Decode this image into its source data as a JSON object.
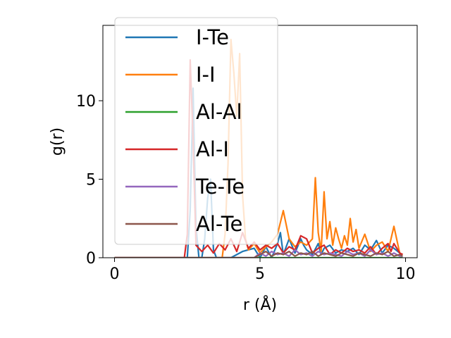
{
  "chart_data": {
    "type": "line",
    "xlabel": "r (Å)",
    "ylabel": "g(r)",
    "xlim": [
      -0.4,
      10.4
    ],
    "ylim": [
      0,
      14.8
    ],
    "xticks": [
      0,
      5,
      10
    ],
    "yticks": [
      0,
      5,
      10
    ],
    "grid": false,
    "legend_position": "top-left",
    "series": [
      {
        "name": "I-Te",
        "color": "#1f77b4",
        "x": [
          0,
          2.5,
          2.6,
          2.7,
          2.8,
          2.9,
          3.0,
          3.1,
          3.2,
          3.3,
          3.4,
          3.5,
          3.6,
          4.0,
          4.4,
          4.8,
          5.0,
          5.2,
          5.4,
          5.6,
          5.7,
          5.8,
          6.0,
          6.2,
          6.4,
          6.5,
          6.6,
          6.8,
          7.0,
          7.1,
          7.2,
          7.4,
          7.6,
          7.8,
          8.0,
          8.2,
          8.4,
          8.6,
          8.8,
          9.0,
          9.2,
          9.4,
          9.6,
          9.8,
          9.9
        ],
        "y": [
          0,
          0,
          3.0,
          10.8,
          2.0,
          0,
          0,
          1.2,
          3.8,
          5.0,
          0.5,
          0,
          0,
          0,
          0.4,
          0.6,
          0,
          0.7,
          0,
          0.9,
          1.6,
          0.2,
          1.2,
          0.3,
          1.2,
          0.8,
          0.5,
          0.2,
          0.9,
          0.2,
          0.6,
          0.8,
          0.3,
          0.5,
          0.4,
          0.6,
          0.2,
          0.8,
          0.5,
          1.1,
          0.3,
          0.8,
          0.6,
          0.3,
          0.2
        ]
      },
      {
        "name": "I-I",
        "color": "#ff7f0e",
        "x": [
          0,
          3.7,
          3.8,
          3.9,
          4.0,
          4.1,
          4.2,
          4.3,
          4.4,
          4.5,
          4.6,
          4.8,
          5.0,
          5.2,
          5.4,
          5.6,
          5.8,
          6.0,
          6.2,
          6.4,
          6.6,
          6.8,
          6.9,
          7.0,
          7.1,
          7.2,
          7.3,
          7.4,
          7.5,
          7.6,
          7.7,
          7.8,
          7.9,
          8.0,
          8.1,
          8.2,
          8.3,
          8.4,
          8.6,
          8.8,
          9.0,
          9.2,
          9.4,
          9.6,
          9.8,
          9.9
        ],
        "y": [
          0,
          0,
          1.5,
          6.0,
          13.9,
          11.8,
          9.0,
          13.0,
          4.0,
          1.2,
          0.5,
          0.9,
          0.3,
          0.7,
          1.0,
          1.5,
          3.0,
          1.2,
          0.7,
          1.0,
          0.8,
          1.2,
          5.1,
          1.6,
          0.4,
          4.2,
          1.2,
          2.3,
          0.8,
          1.9,
          1.2,
          0.6,
          1.4,
          0.8,
          2.5,
          1.0,
          1.8,
          0.6,
          1.5,
          0.4,
          0.8,
          1.0,
          0.4,
          2.0,
          0.3,
          0.2
        ]
      },
      {
        "name": "Al-Al",
        "color": "#2ca02c",
        "x": [
          0,
          9.9
        ],
        "y": [
          0,
          0
        ]
      },
      {
        "name": "Al-I",
        "color": "#d62728",
        "x": [
          0,
          2.4,
          2.5,
          2.6,
          2.7,
          2.8,
          3.0,
          3.2,
          3.4,
          3.6,
          3.8,
          4.0,
          4.2,
          4.4,
          4.6,
          4.8,
          5.0,
          5.2,
          5.4,
          5.6,
          5.8,
          6.0,
          6.2,
          6.4,
          6.6,
          6.8,
          7.0,
          7.2,
          7.4,
          7.6,
          7.8,
          8.0,
          8.2,
          8.4,
          8.6,
          8.8,
          9.0,
          9.2,
          9.4,
          9.5,
          9.6,
          9.8,
          9.9
        ],
        "y": [
          0,
          0,
          1.5,
          12.6,
          7.5,
          0.8,
          0.4,
          0.8,
          0.3,
          0.9,
          0.5,
          1.2,
          0.4,
          1.6,
          0.6,
          1.0,
          0.5,
          0.8,
          0.6,
          0.9,
          0.3,
          0.7,
          0.5,
          1.4,
          1.2,
          0.3,
          0.6,
          0.8,
          0.2,
          0.5,
          0.3,
          0.6,
          0.4,
          0.5,
          0.3,
          0.7,
          0.2,
          0.6,
          0.9,
          0.4,
          0.9,
          0.3,
          0.2
        ]
      },
      {
        "name": "Te-Te",
        "color": "#9467bd",
        "x": [
          0,
          4.8,
          5.0,
          5.2,
          5.4,
          5.6,
          5.8,
          6.0,
          6.2,
          6.4,
          6.6,
          6.8,
          7.0,
          7.2,
          7.4,
          7.6,
          7.8,
          8.0,
          8.2,
          8.4,
          8.6,
          8.8,
          9.0,
          9.2,
          9.4,
          9.6,
          9.8,
          9.9
        ],
        "y": [
          0,
          0,
          0.3,
          0.1,
          0.4,
          0.2,
          0.3,
          0.1,
          0.5,
          0.2,
          0.3,
          0.1,
          0.4,
          0.2,
          0.3,
          0.2,
          0.1,
          0.4,
          0.2,
          0.3,
          0.1,
          0.5,
          0.2,
          0.3,
          0.1,
          0.3,
          0.1,
          0.1
        ]
      },
      {
        "name": "Al-Te",
        "color": "#8c564b",
        "x": [
          0,
          4.8,
          5.0,
          5.2,
          5.4,
          5.6,
          5.8,
          6.0,
          6.2,
          6.4,
          6.6,
          6.8,
          7.0,
          7.2,
          7.4,
          7.6,
          7.8,
          8.0,
          8.2,
          8.4,
          8.6,
          8.8,
          9.0,
          9.2,
          9.4,
          9.6,
          9.8,
          9.9
        ],
        "y": [
          0,
          0,
          0.2,
          0.4,
          0.1,
          0.3,
          0.2,
          0.4,
          0.1,
          0.3,
          0.2,
          0.4,
          0.1,
          0.3,
          0.2,
          0.1,
          0.3,
          0.2,
          0.1,
          0.3,
          0.2,
          0.1,
          0.3,
          0.2,
          0.4,
          0.1,
          0.2,
          0.1
        ]
      }
    ]
  }
}
